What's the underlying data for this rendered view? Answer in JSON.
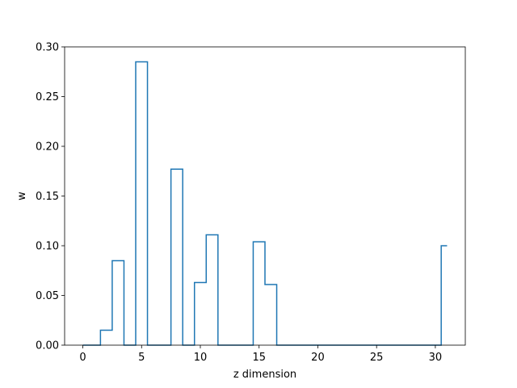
{
  "chart_data": {
    "type": "line",
    "style": "step-histogram",
    "xlabel": "z dimension",
    "ylabel": "w",
    "xlim": [
      -1.55,
      32.55
    ],
    "ylim": [
      0.0,
      0.3
    ],
    "xticks": [
      0,
      5,
      10,
      15,
      20,
      25,
      30
    ],
    "yticks": [
      0.0,
      0.05,
      0.1,
      0.15,
      0.2,
      0.25,
      0.3
    ],
    "xtick_labels": [
      "0",
      "5",
      "10",
      "15",
      "20",
      "25",
      "30"
    ],
    "ytick_labels": [
      "0.00",
      "0.05",
      "0.10",
      "0.15",
      "0.20",
      "0.25",
      "0.30"
    ],
    "grid": false,
    "legend": "none",
    "line_color": "#1f77b4",
    "series": [
      {
        "x": [
          0,
          1,
          2,
          3,
          4,
          5,
          6,
          7,
          8,
          9,
          10,
          11,
          12,
          13,
          14,
          15,
          16,
          17,
          18,
          19,
          20,
          21,
          22,
          23,
          24,
          25,
          26,
          27,
          28,
          29,
          30,
          31
        ],
        "values": [
          0,
          0,
          0.015,
          0.085,
          0,
          0.285,
          0,
          0,
          0.177,
          0,
          0.063,
          0.111,
          0,
          0,
          0,
          0.104,
          0.061,
          0,
          0,
          0,
          0,
          0,
          0,
          0,
          0,
          0,
          0,
          0,
          0,
          0,
          0,
          0.1
        ]
      }
    ]
  }
}
